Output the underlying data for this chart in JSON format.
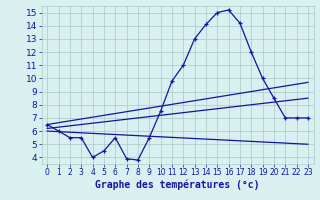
{
  "xlabel": "Graphe des températures (°c)",
  "hours": [
    0,
    1,
    2,
    3,
    4,
    5,
    6,
    7,
    8,
    9,
    10,
    11,
    12,
    13,
    14,
    15,
    16,
    17,
    18,
    19,
    20,
    21,
    22,
    23
  ],
  "temp": [
    6.5,
    6.0,
    5.5,
    5.5,
    4.0,
    4.5,
    5.5,
    3.9,
    3.8,
    5.5,
    7.5,
    9.8,
    11.0,
    13.0,
    14.1,
    15.0,
    15.2,
    14.2,
    12.0,
    10.0,
    8.5,
    7.0,
    7.0,
    7.0
  ],
  "trend1_x": [
    0,
    23
  ],
  "trend1_y": [
    6.5,
    9.7
  ],
  "trend2_x": [
    0,
    23
  ],
  "trend2_y": [
    6.2,
    8.5
  ],
  "trend3_x": [
    0,
    23
  ],
  "trend3_y": [
    6.0,
    5.0
  ],
  "ylim": [
    3.5,
    15.5
  ],
  "xlim": [
    -0.5,
    23.5
  ],
  "yticks": [
    4,
    5,
    6,
    7,
    8,
    9,
    10,
    11,
    12,
    13,
    14,
    15
  ],
  "xticks": [
    0,
    1,
    2,
    3,
    4,
    5,
    6,
    7,
    8,
    9,
    10,
    11,
    12,
    13,
    14,
    15,
    16,
    17,
    18,
    19,
    20,
    21,
    22,
    23
  ],
  "line_color": "#1414A0",
  "bg_color": "#D8F0F0",
  "grid_color": "#A8C8C8",
  "tick_label_color": "#1414A0",
  "xlabel_color": "#1414A0",
  "xlabel_fontsize": 7.0,
  "tick_fontsize": 5.5,
  "ytick_fontsize": 6.5
}
